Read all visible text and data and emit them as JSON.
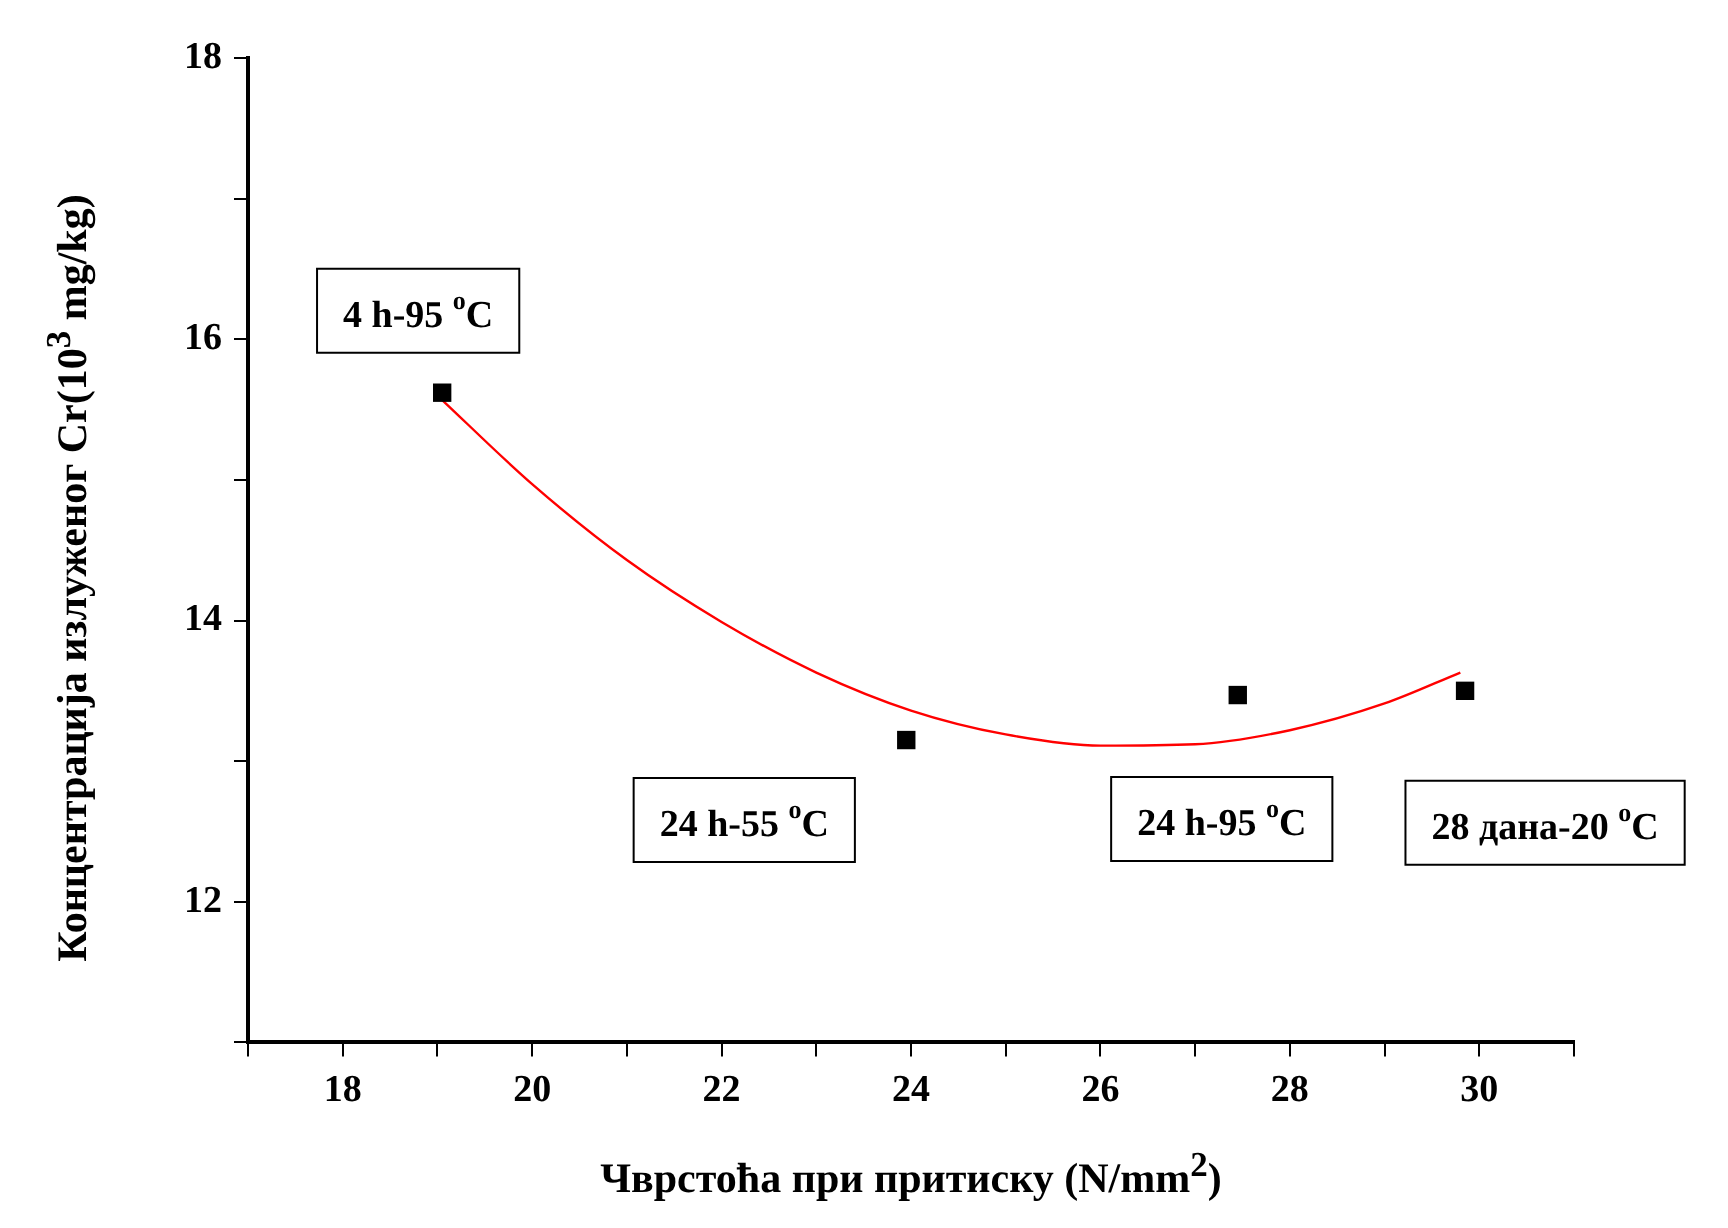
{
  "chart_data": {
    "type": "scatter",
    "xlabel": "Чврстоћа при притиску (N/mm$^{2}$)",
    "ylabel": "Концентрација излуженог Cr(10$^{3}$ mg/kg)",
    "xlim": [
      17,
      31
    ],
    "xticks": [
      {
        "value": 17,
        "label": null
      },
      18,
      {
        "value": 19,
        "label": null
      },
      20,
      {
        "value": 21,
        "label": null
      },
      22,
      {
        "value": 23,
        "label": null
      },
      24,
      {
        "value": 25,
        "label": null
      },
      26,
      {
        "value": 27,
        "label": null
      },
      28,
      {
        "value": 29,
        "label": null
      },
      30,
      {
        "value": 31,
        "label": null
      }
    ],
    "ylim": [
      11,
      18
    ],
    "yticks": [
      {
        "value": 11,
        "label": null
      },
      12,
      {
        "value": 13,
        "label": null
      },
      14,
      {
        "value": 15,
        "label": null
      },
      16,
      {
        "value": 17,
        "label": null
      },
      18
    ],
    "grid": false,
    "legend": false,
    "series": [
      {
        "color": "#000000",
        "marker": "square",
        "x": [
          19.05,
          23.95,
          27.45,
          29.85
        ],
        "values": [
          15.62,
          13.15,
          13.47,
          13.5
        ]
      },
      {
        "type": "line",
        "color": "#ff0000",
        "marker": "none",
        "x": [
          19,
          20,
          21,
          22,
          23,
          24,
          25,
          26,
          27,
          28,
          29,
          29.8
        ],
        "values": [
          15.6,
          14.97,
          14.43,
          13.99,
          13.63,
          13.36,
          13.19,
          13.11,
          13.12,
          13.22,
          13.41,
          13.63
        ]
      }
    ],
    "annotations": [
      {
        "text": "4 h-95 $^{o}$C",
        "x": 19.05,
        "y": 15.62
      },
      {
        "text": "24 h-55 $^{o}$C",
        "x": 23.95,
        "y": 13.15
      },
      {
        "text": "24 h-95 $^{o}$C",
        "x": 27.45,
        "y": 13.47
      },
      {
        "text": "28 дана-20 $^{o}$C",
        "x": 29.85,
        "y": 13.5
      }
    ]
  }
}
